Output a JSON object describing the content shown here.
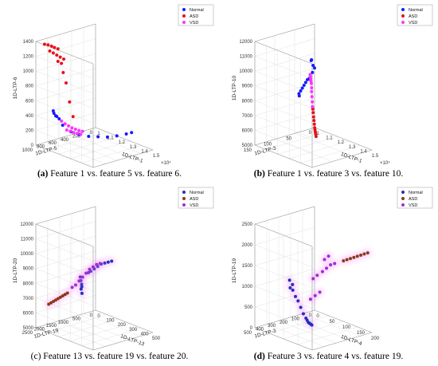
{
  "figure": {
    "panels": [
      {
        "caption_tag": "(a)",
        "caption_text": " Feature 1 vs. feature 5 vs. feature 6.",
        "tag_bold": true,
        "style": "plain",
        "legend": [
          "Normal",
          "ASD",
          "VSD"
        ],
        "colors": [
          "#1a1aff",
          "#e8101a",
          "#ff33ff"
        ],
        "axes": {
          "x": {
            "label": "1D-LTP-1",
            "ticks": [
              "1",
              "1.1",
              "1.2",
              "1.3",
              "1.4",
              "1.5"
            ],
            "multiplier": "×10⁴"
          },
          "y": {
            "label": "1D-LTP-5",
            "ticks": [
              "0",
              "200",
              "400",
              "600",
              "800",
              "1000"
            ]
          },
          "z": {
            "label": "1D-LTP-6",
            "ticks": [
              "0",
              "200",
              "400",
              "600",
              "800",
              "1000",
              "1200",
              "1400"
            ]
          }
        }
      },
      {
        "caption_tag": "(b)",
        "caption_text": " Feature 1 vs. feature 3 vs. feature 10.",
        "tag_bold": true,
        "style": "plain",
        "legend": [
          "Normal",
          "ASD",
          "VSD"
        ],
        "colors": [
          "#1a1aff",
          "#e8101a",
          "#ff33ff"
        ],
        "axes": {
          "x": {
            "label": "1D-LTP-1",
            "ticks": [
              "1",
              "1.1",
              "1.2",
              "1.3",
              "1.4",
              "1.5"
            ],
            "multiplier": "×10⁴"
          },
          "y": {
            "label": "1D-LTP-3",
            "ticks": [
              "0",
              "50",
              "100",
              "150"
            ]
          },
          "z": {
            "label": "1D-LTP-10",
            "ticks": [
              "5000",
              "6000",
              "7000",
              "8000",
              "9000",
              "10000",
              "11000",
              "12000"
            ]
          }
        }
      },
      {
        "caption_tag": "(c)",
        "caption_text": " Feature 13 vs. feature 19 vs. feature 20.",
        "tag_bold": false,
        "style": "glow",
        "legend": [
          "Normal",
          "ASD",
          "VSD"
        ],
        "colors": [
          "#2030c0",
          "#8b3a1a",
          "#9b30d0"
        ],
        "axes": {
          "x": {
            "label": "1D-LTP-13",
            "ticks": [
              "0",
              "100",
              "200",
              "300",
              "400",
              "500"
            ]
          },
          "y": {
            "label": "1D-LTP-19",
            "ticks": [
              "0",
              "500",
              "1000",
              "1500",
              "2000",
              "2500"
            ]
          },
          "z": {
            "label": "1D-LTP-20",
            "ticks": [
              "5000",
              "6000",
              "7000",
              "8000",
              "9000",
              "10000",
              "11000",
              "12000"
            ]
          }
        }
      },
      {
        "caption_tag": "(d)",
        "caption_text": " Feature 3 vs. feature 4 vs. feature 19.",
        "tag_bold": true,
        "style": "glow",
        "legend": [
          "Normal",
          "ASD",
          "VSD"
        ],
        "colors": [
          "#2030c0",
          "#8b3a1a",
          "#9b30d0"
        ],
        "axes": {
          "x": {
            "label": "1D-LTP-4",
            "ticks": [
              "0",
              "50",
              "100",
              "150",
              "200"
            ]
          },
          "y": {
            "label": "1D-LTP-3",
            "ticks": [
              "0",
              "100",
              "200",
              "300",
              "400",
              "500"
            ]
          },
          "z": {
            "label": "1D-LTP-19",
            "ticks": [
              "0",
              "500",
              "1000",
              "1500",
              "2000",
              "2500"
            ]
          }
        }
      }
    ]
  },
  "chart_data": [
    {
      "type": "scatter",
      "dims": 3,
      "xlabel": "1D-LTP-1",
      "ylabel": "1D-LTP-5",
      "zlabel": "1D-LTP-6",
      "xlim": [
        10000,
        15000
      ],
      "ylim": [
        0,
        1000
      ],
      "zlim": [
        0,
        1400
      ],
      "x_multiplier": "×10⁴",
      "legend": "top-right",
      "series": [
        {
          "name": "Normal",
          "points": [
            [
              11000,
              900,
              500
            ],
            [
              10950,
              880,
              460
            ],
            [
              11050,
              870,
              430
            ],
            [
              11100,
              860,
              420
            ],
            [
              11200,
              840,
              390
            ],
            [
              11300,
              800,
              300
            ],
            [
              11500,
              700,
              200
            ],
            [
              11700,
              600,
              150
            ],
            [
              12000,
              500,
              120
            ],
            [
              12300,
              400,
              110
            ],
            [
              12600,
              300,
              100
            ],
            [
              12900,
              200,
              110
            ],
            [
              13200,
              100,
              130
            ],
            [
              13400,
              50,
              150
            ]
          ]
        },
        {
          "name": "ASD",
          "points": [
            [
              10500,
              950,
              1380
            ],
            [
              10700,
              930,
              1380
            ],
            [
              10900,
              910,
              1370
            ],
            [
              11100,
              900,
              1360
            ],
            [
              11300,
              880,
              1350
            ],
            [
              10800,
              920,
              1300
            ],
            [
              11000,
              900,
              1280
            ],
            [
              11200,
              880,
              1260
            ],
            [
              11400,
              860,
              1240
            ],
            [
              11600,
              840,
              1220
            ],
            [
              11200,
              860,
              1170
            ],
            [
              11400,
              840,
              1150
            ],
            [
              11500,
              830,
              1030
            ],
            [
              11700,
              820,
              900
            ],
            [
              11900,
              800,
              650
            ],
            [
              12100,
              780,
              460
            ]
          ]
        },
        {
          "name": "VSD",
          "points": [
            [
              11200,
              800,
              350
            ],
            [
              11400,
              780,
              320
            ],
            [
              11600,
              760,
              300
            ],
            [
              11800,
              740,
              280
            ],
            [
              12000,
              720,
              270
            ],
            [
              12200,
              700,
              260
            ],
            [
              12400,
              680,
              255
            ],
            [
              11500,
              770,
              240
            ],
            [
              11700,
              750,
              230
            ],
            [
              11900,
              730,
              220
            ],
            [
              12100,
              710,
              215
            ],
            [
              12300,
              690,
              210
            ]
          ]
        }
      ]
    },
    {
      "type": "scatter",
      "dims": 3,
      "xlabel": "1D-LTP-1",
      "ylabel": "1D-LTP-3",
      "zlabel": "1D-LTP-10",
      "xlim": [
        10000,
        15000
      ],
      "ylim": [
        0,
        150
      ],
      "zlim": [
        5000,
        12000
      ],
      "x_multiplier": "×10⁴",
      "legend": "top-right",
      "series": [
        {
          "name": "Normal",
          "points": [
            [
              10400,
              20,
              9800
            ],
            [
              10500,
              22,
              9900
            ],
            [
              10700,
              24,
              9600
            ],
            [
              10900,
              26,
              9500
            ],
            [
              11200,
              40,
              9400
            ],
            [
              12000,
              70,
              9500
            ],
            [
              12300,
              80,
              9600
            ],
            [
              12500,
              90,
              9700
            ],
            [
              12700,
              100,
              9650
            ],
            [
              12900,
              110,
              9600
            ],
            [
              13100,
              120,
              9550
            ],
            [
              13300,
              130,
              9500
            ],
            [
              13500,
              140,
              9450
            ],
            [
              13700,
              145,
              9400
            ]
          ]
        },
        {
          "name": "ASD",
          "points": [
            [
              12000,
              60,
              6800
            ],
            [
              12100,
              62,
              6600
            ],
            [
              12200,
              64,
              6400
            ],
            [
              12300,
              66,
              6200
            ],
            [
              12400,
              68,
              6100
            ],
            [
              12500,
              70,
              6000
            ],
            [
              12600,
              72,
              5900
            ],
            [
              12700,
              74,
              5800
            ],
            [
              12100,
              65,
              7400
            ],
            [
              12200,
              67,
              7200
            ]
          ]
        },
        {
          "name": "VSD",
          "points": [
            [
              11000,
              40,
              9200
            ],
            [
              11200,
              45,
              9150
            ],
            [
              11400,
              50,
              9100
            ],
            [
              11600,
              55,
              9050
            ],
            [
              11800,
              60,
              9000
            ],
            [
              12000,
              65,
              8800
            ],
            [
              12100,
              68,
              8600
            ],
            [
              12200,
              70,
              8300
            ],
            [
              12300,
              72,
              8000
            ],
            [
              12350,
              73,
              7700
            ]
          ]
        }
      ]
    },
    {
      "type": "scatter",
      "dims": 3,
      "xlabel": "1D-LTP-13",
      "ylabel": "1D-LTP-19",
      "zlabel": "1D-LTP-20",
      "xlim": [
        0,
        500
      ],
      "ylim": [
        0,
        2500
      ],
      "zlim": [
        5000,
        12000
      ],
      "legend": "top-right",
      "series": [
        {
          "name": "Normal",
          "points": [
            [
              250,
              1500,
              9000
            ],
            [
              260,
              1450,
              9100
            ],
            [
              280,
              1400,
              9300
            ],
            [
              300,
              1350,
              9500
            ],
            [
              320,
              1300,
              9700
            ],
            [
              340,
              1250,
              9800
            ],
            [
              360,
              1200,
              9900
            ],
            [
              380,
              1150,
              10000
            ],
            [
              200,
              1600,
              8600
            ],
            [
              210,
              1620,
              8400
            ],
            [
              220,
              1640,
              8200
            ],
            [
              215,
              1610,
              8000
            ],
            [
              205,
              1590,
              7800
            ],
            [
              225,
              1650,
              7600
            ]
          ]
        },
        {
          "name": "ASD",
          "points": [
            [
              50,
              2200,
              6600
            ],
            [
              60,
              2150,
              6700
            ],
            [
              70,
              2100,
              6800
            ],
            [
              80,
              2050,
              6900
            ],
            [
              90,
              2000,
              7000
            ],
            [
              100,
              1950,
              7100
            ],
            [
              110,
              1900,
              7200
            ],
            [
              120,
              1850,
              7300
            ],
            [
              130,
              1800,
              7400
            ]
          ]
        },
        {
          "name": "VSD",
          "points": [
            [
              150,
              1700,
              7800
            ],
            [
              170,
              1650,
              8000
            ],
            [
              190,
              1600,
              8300
            ],
            [
              210,
              1550,
              8600
            ],
            [
              230,
              1500,
              8900
            ],
            [
              250,
              1450,
              9200
            ],
            [
              270,
              1400,
              9400
            ],
            [
              290,
              1350,
              9600
            ],
            [
              310,
              1300,
              9700
            ]
          ]
        }
      ]
    },
    {
      "type": "scatter",
      "dims": 3,
      "xlabel": "1D-LTP-4",
      "ylabel": "1D-LTP-3",
      "zlabel": "1D-LTP-19",
      "xlim": [
        0,
        200
      ],
      "ylim": [
        0,
        500
      ],
      "zlim": [
        0,
        2500
      ],
      "legend": "top-right",
      "series": [
        {
          "name": "Normal",
          "points": [
            [
              40,
              300,
              900
            ],
            [
              45,
              290,
              850
            ],
            [
              50,
              280,
              700
            ],
            [
              55,
              270,
              600
            ],
            [
              60,
              260,
              450
            ],
            [
              65,
              250,
              300
            ],
            [
              70,
              240,
              200
            ],
            [
              72,
              235,
              150
            ],
            [
              74,
              230,
              100
            ],
            [
              76,
              225,
              80
            ],
            [
              78,
              220,
              60
            ],
            [
              80,
              215,
              40
            ],
            [
              42,
              310,
              1100
            ],
            [
              48,
              300,
              1000
            ]
          ]
        },
        {
          "name": "ASD",
          "points": [
            [
              150,
              60,
              1700
            ],
            [
              160,
              55,
              1750
            ],
            [
              170,
              50,
              1800
            ],
            [
              180,
              45,
              1850
            ],
            [
              190,
              40,
              1900
            ],
            [
              200,
              35,
              1950
            ],
            [
              140,
              65,
              1650
            ],
            [
              130,
              70,
              1600
            ]
          ]
        },
        {
          "name": "VSD",
          "points": [
            [
              90,
              150,
              1300
            ],
            [
              100,
              140,
              1400
            ],
            [
              110,
              130,
              1500
            ],
            [
              120,
              120,
              1550
            ],
            [
              80,
              170,
              1200
            ],
            [
              70,
              180,
              1100
            ],
            [
              95,
              145,
              1600
            ],
            [
              105,
              135,
              1700
            ],
            [
              85,
              160,
              800
            ],
            [
              75,
              175,
              700
            ],
            [
              65,
              190,
              600
            ]
          ]
        }
      ]
    }
  ]
}
